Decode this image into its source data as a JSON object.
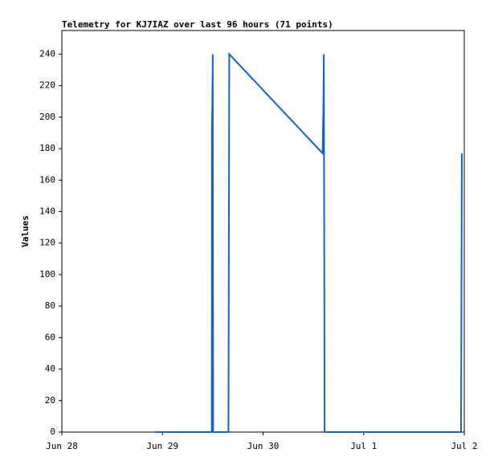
{
  "chart_data": {
    "type": "line",
    "title": "Telemetry for KJ7IAZ over last 96 hours (71 points)",
    "y_label": "Values",
    "x": [
      0.928,
      1.49,
      1.492,
      1.496,
      1.5,
      1.504,
      1.656,
      1.66,
      1.664,
      2.592,
      2.6,
      2.604,
      2.608,
      2.612,
      3.968,
      3.976
    ],
    "series": [
      {
        "color": "#1565c0",
        "values": [
          0,
          0,
          192,
          208,
          240,
          0,
          0,
          120,
          240,
          177,
          208,
          240,
          120,
          0,
          0,
          177
        ]
      }
    ],
    "xlim": [
      0,
      4
    ],
    "xticks": [
      {
        "value": 0,
        "label": "Jun 28"
      },
      {
        "value": 1,
        "label": "Jun 29"
      },
      {
        "value": 2,
        "label": "Jun 30"
      },
      {
        "value": 3,
        "label": "Jul 1"
      },
      {
        "value": 4,
        "label": "Jul 2"
      }
    ],
    "ylim": [
      0,
      255
    ],
    "yticks": [
      0,
      20,
      40,
      60,
      80,
      100,
      120,
      140,
      160,
      180,
      200,
      220,
      240
    ]
  }
}
